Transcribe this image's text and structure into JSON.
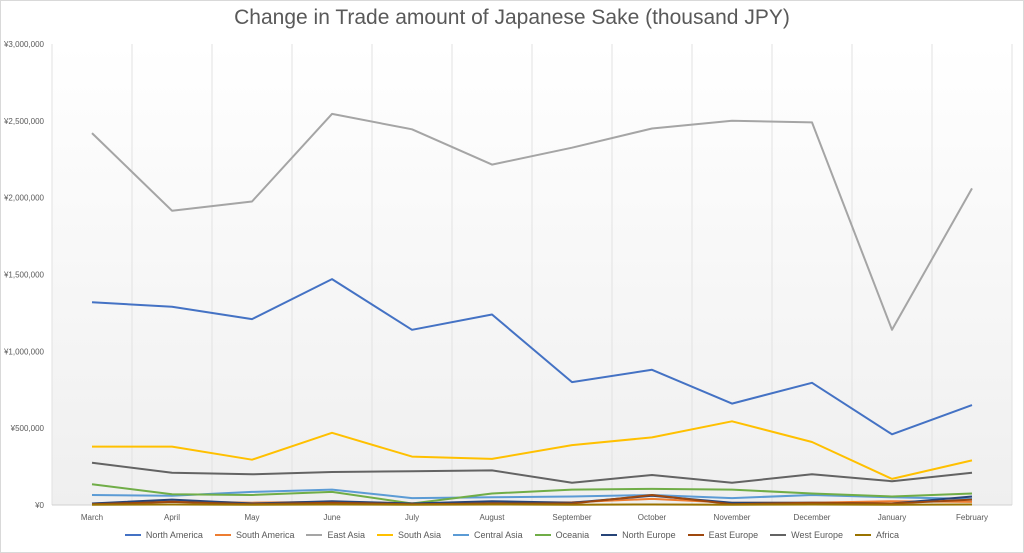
{
  "chart_data": {
    "type": "line",
    "title": "Change in Trade amount of Japanese Sake (thousand JPY)",
    "xlabel": "",
    "ylabel": "",
    "categories": [
      "March",
      "April",
      "May",
      "June",
      "July",
      "August",
      "September",
      "October",
      "November",
      "December",
      "January",
      "February"
    ],
    "ylim": [
      0,
      3000000
    ],
    "yticks": [
      0,
      500000,
      1000000,
      1500000,
      2000000,
      2500000,
      3000000
    ],
    "ytick_labels": [
      "¥0",
      "¥500,000",
      "¥1,000,000",
      "¥1,500,000",
      "¥2,000,000",
      "¥2,500,000",
      "¥3,000,000"
    ],
    "grid": "vertical",
    "legend_position": "bottom",
    "series": [
      {
        "name": "North America",
        "color": "#4472C4",
        "values": [
          1320000,
          1290000,
          1210000,
          1470000,
          1140000,
          1240000,
          800000,
          880000,
          660000,
          795000,
          460000,
          650000
        ]
      },
      {
        "name": "South America",
        "color": "#ED7D31",
        "values": [
          10000,
          25000,
          15000,
          20000,
          12000,
          15000,
          18000,
          40000,
          15000,
          15000,
          25000,
          20000
        ]
      },
      {
        "name": "East Asia",
        "color": "#A5A5A5",
        "values": [
          2420000,
          1915000,
          1975000,
          2545000,
          2445000,
          2215000,
          2325000,
          2450000,
          2500000,
          2490000,
          1140000,
          2060000
        ]
      },
      {
        "name": "South Asia",
        "color": "#FFC000",
        "values": [
          380000,
          380000,
          295000,
          470000,
          315000,
          300000,
          390000,
          440000,
          545000,
          410000,
          170000,
          290000
        ]
      },
      {
        "name": "Central Asia",
        "color": "#5B9BD5",
        "values": [
          65000,
          60000,
          85000,
          100000,
          45000,
          50000,
          55000,
          65000,
          45000,
          65000,
          50000,
          40000
        ]
      },
      {
        "name": "Oceania",
        "color": "#70AD47",
        "values": [
          135000,
          70000,
          65000,
          85000,
          10000,
          75000,
          100000,
          105000,
          100000,
          75000,
          55000,
          75000
        ]
      },
      {
        "name": "North Europe",
        "color": "#264478",
        "values": [
          10000,
          35000,
          10000,
          25000,
          10000,
          25000,
          15000,
          60000,
          15000,
          15000,
          10000,
          55000
        ]
      },
      {
        "name": "East Europe",
        "color": "#9E480E",
        "values": [
          5000,
          20000,
          5000,
          15000,
          5000,
          10000,
          10000,
          65000,
          5000,
          15000,
          10000,
          35000
        ]
      },
      {
        "name": "West Europe",
        "color": "#636363",
        "values": [
          275000,
          210000,
          200000,
          215000,
          220000,
          225000,
          145000,
          195000,
          145000,
          200000,
          155000,
          210000
        ]
      },
      {
        "name": "Africa",
        "color": "#997300",
        "values": [
          2000,
          3000,
          2000,
          3000,
          2000,
          3000,
          2000,
          3000,
          2000,
          3000,
          2000,
          3000
        ]
      }
    ]
  }
}
